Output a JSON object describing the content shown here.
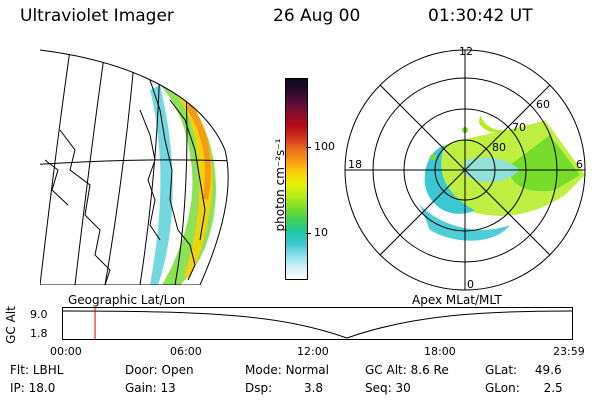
{
  "header": {
    "instrument": "Ultraviolet Imager",
    "date": "26 Aug 00",
    "time": "01:30:42 UT"
  },
  "left_panel": {
    "caption": "Geographic Lat/Lon"
  },
  "colorbar": {
    "unit_label": "photon cm⁻²s⁻¹",
    "ticks": [
      "100",
      "10"
    ],
    "colors": [
      "#0c0c1e",
      "#2a0a2a",
      "#5a0c3a",
      "#8c0c2a",
      "#b40c14",
      "#d2321e",
      "#ec6e1e",
      "#f69c14",
      "#fad20a",
      "#e6f00a",
      "#b4ec1e",
      "#78dc2a",
      "#3cd25a",
      "#1ec8a0",
      "#3cc8d2",
      "#8ce0ec",
      "#d2f0f6",
      "#ffffff"
    ]
  },
  "polar_panel": {
    "caption": "Apex MLat/MLT",
    "mlt_labels": {
      "top": "12",
      "left": "18",
      "right": "6",
      "bottom": "0"
    },
    "lat_labels": [
      "60",
      "70",
      "80"
    ]
  },
  "altitude_plot": {
    "ylabel": "GC Alt",
    "y_ticks": [
      "9.0",
      "1.8"
    ],
    "x_ticks": [
      "00:00",
      "06:00",
      "12:00",
      "18:00",
      "23:59"
    ],
    "marker_time": "01:30:42",
    "marker_color": "#e00000"
  },
  "info": {
    "flt_label": "Flt:",
    "flt_value": "LBHL",
    "door_label": "Door:",
    "door_value": "Open",
    "mode_label": "Mode:",
    "mode_value": "Normal",
    "gcalt_label": "GC Alt:",
    "gcalt_value": "8.6 Re",
    "glat_label": "GLat:",
    "glat_value": "49.6",
    "ip_label": "IP:",
    "ip_value": "18.0",
    "gain_label": "Gain:",
    "gain_value": "13",
    "dsp_label": "Dsp:",
    "dsp_value": "3.8",
    "seq_label": "Seq:",
    "seq_value": "30",
    "glon_label": "GLon:",
    "glon_value": "2.5"
  }
}
